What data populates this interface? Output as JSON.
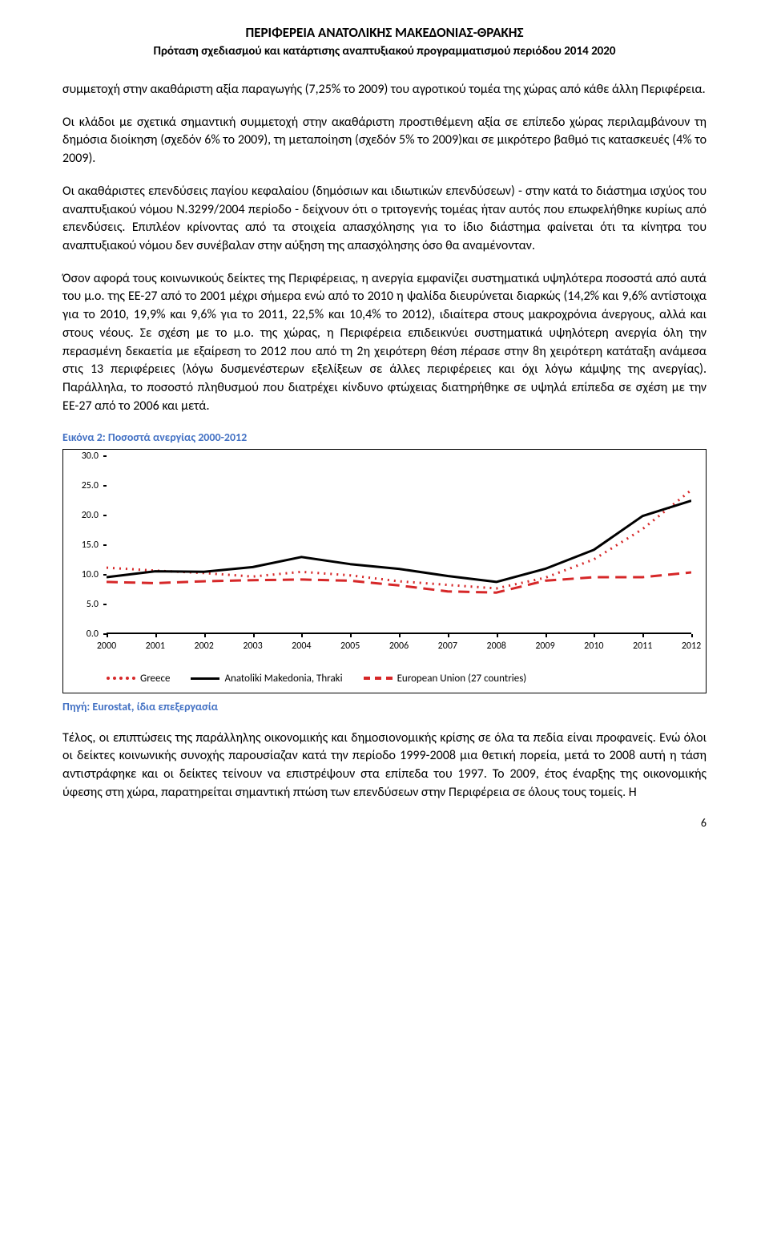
{
  "header": {
    "title": "ΠΕΡΙΦΕΡΕΙΑ ΑΝΑΤΟΛΙΚΗΣ ΜΑΚΕΔΟΝΙΑΣ-ΘΡΑΚΗΣ",
    "subtitle": "Πρόταση σχεδιασμού και κατάρτισης αναπτυξιακού προγραμματισμού περιόδου 2014 2020"
  },
  "paragraphs": {
    "p1": "συμμετοχή στην ακαθάριστη αξία παραγωγής (7,25% το 2009) του αγροτικού τομέα της χώρας από κάθε άλλη Περιφέρεια.",
    "p2": "Οι κλάδοι με σχετικά σημαντική συμμετοχή στην ακαθάριστη προστιθέμενη αξία σε επίπεδο χώρας περιλαμβάνουν τη δημόσια διοίκηση (σχεδόν 6% το 2009), τη μεταποίηση (σχεδόν 5% το 2009)και σε μικρότερο βαθμό τις κατασκευές (4% το 2009).",
    "p3": "Οι ακαθάριστες επενδύσεις παγίου κεφαλαίου (δημόσιων και ιδιωτικών επενδύσεων) - στην κατά το διάστημα ισχύος του αναπτυξιακού νόμου Ν.3299/2004 περίοδο - δείχνουν ότι ο τριτογενής τομέας ήταν αυτός που επωφελήθηκε κυρίως από επενδύσεις. Επιπλέον κρίνοντας από τα στοιχεία απασχόλησης για το ίδιο διάστημα φαίνεται ότι τα κίνητρα του αναπτυξιακού νόμου δεν συνέβαλαν στην αύξηση της απασχόλησης όσο θα αναμένονταν.",
    "p4": "Όσον αφορά τους κοινωνικούς δείκτες της Περιφέρειας, η ανεργία εμφανίζει συστηματικά υψηλότερα ποσοστά από αυτά του μ.ο. της ΕΕ-27 από το 2001 μέχρι σήμερα ενώ από το 2010 η ψαλίδα διευρύνεται διαρκώς (14,2% και 9,6% αντίστοιχα για το 2010, 19,9% και 9,6% για το 2011, 22,5% και 10,4% το 2012), ιδιαίτερα στους μακροχρόνια άνεργους, αλλά και στους νέους. Σε σχέση με το μ.ο. της χώρας, η Περιφέρεια επιδεικνύει συστηματικά υψηλότερη ανεργία όλη την περασμένη δεκαετία με εξαίρεση το 2012 που από τη 2η χειρότερη θέση πέρασε στην 8η χειρότερη κατάταξη ανάμεσα στις 13 περιφέρειες (λόγω δυσμενέστερων εξελίξεων σε άλλες περιφέρειες και όχι λόγω κάμψης της ανεργίας). Παράλληλα, το ποσοστό πληθυσμού που διατρέχει κίνδυνο φτώχειας διατηρήθηκε σε υψηλά επίπεδα σε σχέση με την ΕΕ-27 από το 2006 και μετά.",
    "p5": "Τέλος, οι επιπτώσεις της παράλληλης οικονομικής και δημοσιονομικής κρίσης σε όλα τα πεδία είναι προφανείς. Ενώ όλοι οι δείκτες κοινωνικής συνοχής παρουσίαζαν κατά την περίοδο 1999-2008 μια θετική πορεία, μετά το 2008 αυτή η τάση αντιστράφηκε και οι δείκτες τείνουν να επιστρέψουν στα επίπεδα του 1997. Το 2009, έτος έναρξης της οικονομικής ύφεσης στη χώρα, παρατηρείται σημαντική πτώση των επενδύσεων στην Περιφέρεια σε όλους τους τομείς. Η"
  },
  "figure": {
    "title": "Εικόνα 2: Ποσοστά ανεργίας 2000-2012",
    "source": "Πηγή: Eurostat, ίδια επεξεργασία"
  },
  "chart": {
    "type": "line",
    "ylim": [
      0,
      30
    ],
    "ytick_step": 5,
    "yticks": [
      0.0,
      5.0,
      10.0,
      15.0,
      20.0,
      25.0,
      30.0
    ],
    "ytick_labels": [
      "0.0",
      "5.0",
      "10.0",
      "15.0",
      "20.0",
      "25.0",
      "30.0"
    ],
    "xcategories": [
      "2000",
      "2001",
      "2002",
      "2003",
      "2004",
      "2005",
      "2006",
      "2007",
      "2008",
      "2009",
      "2010",
      "2011",
      "2012"
    ],
    "background_color": "#ffffff",
    "axis_color": "#000000",
    "label_fontsize": 12,
    "line_width": 3,
    "series": [
      {
        "name": "Greece",
        "color": "#d62728",
        "style": "dotted",
        "values": [
          11.2,
          10.7,
          10.3,
          9.7,
          10.5,
          9.9,
          8.9,
          8.3,
          7.7,
          9.5,
          12.6,
          17.7,
          24.3
        ]
      },
      {
        "name": "Anatoliki Makedonia, Thraki",
        "color": "#000000",
        "style": "solid",
        "values": [
          9.6,
          10.6,
          10.5,
          11.3,
          13.0,
          11.8,
          11.0,
          9.8,
          8.8,
          11.0,
          14.2,
          19.9,
          22.5
        ]
      },
      {
        "name": "European Union (27 countries)",
        "color": "#d62728",
        "style": "dashed",
        "values": [
          8.8,
          8.6,
          8.9,
          9.1,
          9.2,
          9.0,
          8.2,
          7.2,
          7.0,
          9.0,
          9.6,
          9.6,
          10.4
        ]
      }
    ]
  },
  "page_number": "6"
}
